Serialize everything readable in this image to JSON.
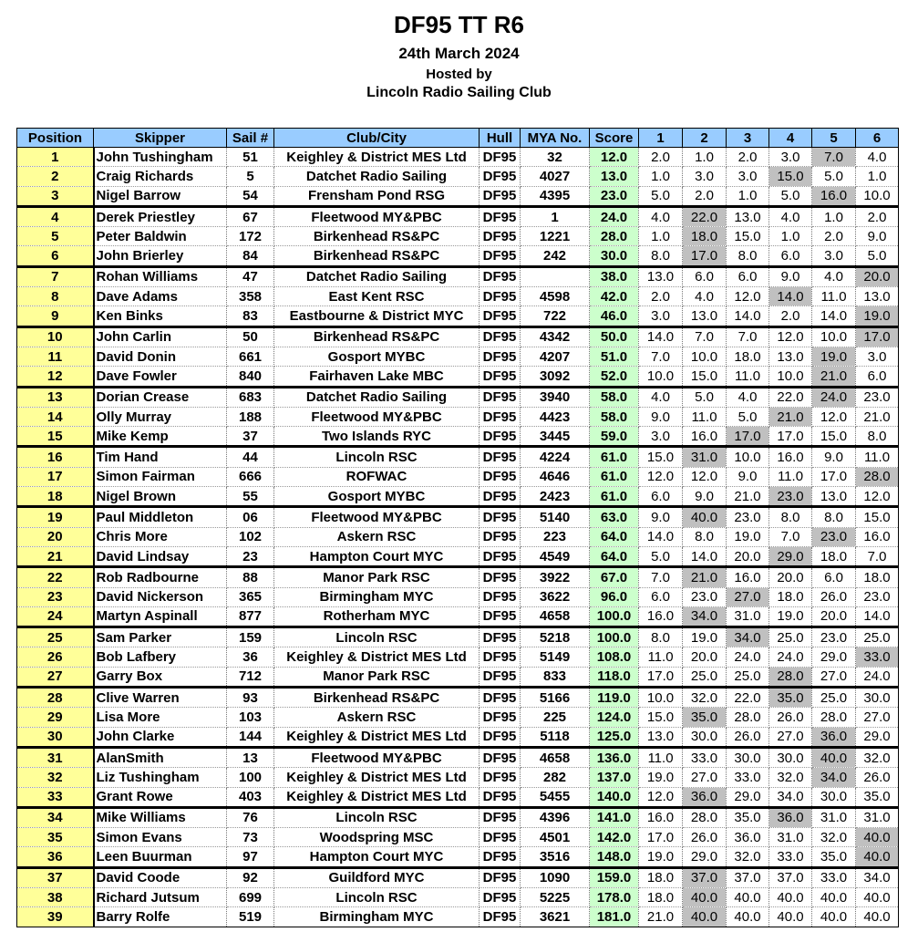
{
  "header": {
    "title": "DF95 TT R6",
    "date": "24th March 2024",
    "hosted_by": "Hosted by",
    "club": "Lincoln Radio Sailing Club"
  },
  "colors": {
    "header_bg": "#99ccff",
    "position_bg": "#ffff99",
    "score_bg": "#ccffcc",
    "discard_bg": "#c0c0c0"
  },
  "columns": [
    "Position",
    "Skipper",
    "Sail #",
    "Club/City",
    "Hull",
    "MYA No.",
    "Score",
    "1",
    "2",
    "3",
    "4",
    "5",
    "6"
  ],
  "rows": [
    {
      "pos": "1",
      "skipper": "John Tushingham",
      "sail": "51",
      "club": "Keighley & District MES Ltd",
      "hull": "DF95",
      "mya": "32",
      "score": "12.0",
      "races": [
        "2.0",
        "1.0",
        "2.0",
        "3.0",
        "7.0",
        "4.0"
      ],
      "discard": 5
    },
    {
      "pos": "2",
      "skipper": "Craig Richards",
      "sail": "5",
      "club": "Datchet Radio Sailing",
      "hull": "DF95",
      "mya": "4027",
      "score": "13.0",
      "races": [
        "1.0",
        "3.0",
        "3.0",
        "15.0",
        "5.0",
        "1.0"
      ],
      "discard": 4
    },
    {
      "pos": "3",
      "skipper": "Nigel Barrow",
      "sail": "54",
      "club": "Frensham Pond RSG",
      "hull": "DF95",
      "mya": "4395",
      "score": "23.0",
      "races": [
        "5.0",
        "2.0",
        "1.0",
        "5.0",
        "16.0",
        "10.0"
      ],
      "discard": 5
    },
    {
      "pos": "4",
      "skipper": "Derek Priestley",
      "sail": "67",
      "club": "Fleetwood MY&PBC",
      "hull": "DF95",
      "mya": "1",
      "score": "24.0",
      "races": [
        "4.0",
        "22.0",
        "13.0",
        "4.0",
        "1.0",
        "2.0"
      ],
      "discard": 2
    },
    {
      "pos": "5",
      "skipper": "Peter Baldwin",
      "sail": "172",
      "club": "Birkenhead RS&PC",
      "hull": "DF95",
      "mya": "1221",
      "score": "28.0",
      "races": [
        "1.0",
        "18.0",
        "15.0",
        "1.0",
        "2.0",
        "9.0"
      ],
      "discard": 2
    },
    {
      "pos": "6",
      "skipper": "John Brierley",
      "sail": "84",
      "club": "Birkenhead RS&PC",
      "hull": "DF95",
      "mya": "242",
      "score": "30.0",
      "races": [
        "8.0",
        "17.0",
        "8.0",
        "6.0",
        "3.0",
        "5.0"
      ],
      "discard": 2
    },
    {
      "pos": "7",
      "skipper": "Rohan Williams",
      "sail": "47",
      "club": "Datchet Radio Sailing",
      "hull": "DF95",
      "mya": "",
      "score": "38.0",
      "races": [
        "13.0",
        "6.0",
        "6.0",
        "9.0",
        "4.0",
        "20.0"
      ],
      "discard": 6
    },
    {
      "pos": "8",
      "skipper": "Dave Adams",
      "sail": "358",
      "club": "East Kent RSC",
      "hull": "DF95",
      "mya": "4598",
      "score": "42.0",
      "races": [
        "2.0",
        "4.0",
        "12.0",
        "14.0",
        "11.0",
        "13.0"
      ],
      "discard": 4
    },
    {
      "pos": "9",
      "skipper": "Ken Binks",
      "sail": "83",
      "club": "Eastbourne & District MYC",
      "hull": "DF95",
      "mya": "722",
      "score": "46.0",
      "races": [
        "3.0",
        "13.0",
        "14.0",
        "2.0",
        "14.0",
        "19.0"
      ],
      "discard": 6
    },
    {
      "pos": "10",
      "skipper": "John Carlin",
      "sail": "50",
      "club": "Birkenhead RS&PC",
      "hull": "DF95",
      "mya": "4342",
      "score": "50.0",
      "races": [
        "14.0",
        "7.0",
        "7.0",
        "12.0",
        "10.0",
        "17.0"
      ],
      "discard": 6
    },
    {
      "pos": "11",
      "skipper": "David Donin",
      "sail": "661",
      "club": "Gosport MYBC",
      "hull": "DF95",
      "mya": "4207",
      "score": "51.0",
      "races": [
        "7.0",
        "10.0",
        "18.0",
        "13.0",
        "19.0",
        "3.0"
      ],
      "discard": 5
    },
    {
      "pos": "12",
      "skipper": "Dave Fowler",
      "sail": "840",
      "club": "Fairhaven Lake MBC",
      "hull": "DF95",
      "mya": "3092",
      "score": "52.0",
      "races": [
        "10.0",
        "15.0",
        "11.0",
        "10.0",
        "21.0",
        "6.0"
      ],
      "discard": 5
    },
    {
      "pos": "13",
      "skipper": "Dorian Crease",
      "sail": "683",
      "club": "Datchet Radio Sailing",
      "hull": "DF95",
      "mya": "3940",
      "score": "58.0",
      "races": [
        "4.0",
        "5.0",
        "4.0",
        "22.0",
        "24.0",
        "23.0"
      ],
      "discard": 5
    },
    {
      "pos": "14",
      "skipper": "Olly Murray",
      "sail": "188",
      "club": "Fleetwood MY&PBC",
      "hull": "DF95",
      "mya": "4423",
      "score": "58.0",
      "races": [
        "9.0",
        "11.0",
        "5.0",
        "21.0",
        "12.0",
        "21.0"
      ],
      "discard": 4
    },
    {
      "pos": "15",
      "skipper": "Mike Kemp",
      "sail": "37",
      "club": "Two Islands RYC",
      "hull": "DF95",
      "mya": "3445",
      "score": "59.0",
      "races": [
        "3.0",
        "16.0",
        "17.0",
        "17.0",
        "15.0",
        "8.0"
      ],
      "discard": 3
    },
    {
      "pos": "16",
      "skipper": "Tim Hand",
      "sail": "44",
      "club": "Lincoln RSC",
      "hull": "DF95",
      "mya": "4224",
      "score": "61.0",
      "races": [
        "15.0",
        "31.0",
        "10.0",
        "16.0",
        "9.0",
        "11.0"
      ],
      "discard": 2
    },
    {
      "pos": "17",
      "skipper": "Simon Fairman",
      "sail": "666",
      "club": "ROFWAC",
      "hull": "DF95",
      "mya": "4646",
      "score": "61.0",
      "races": [
        "12.0",
        "12.0",
        "9.0",
        "11.0",
        "17.0",
        "28.0"
      ],
      "discard": 6
    },
    {
      "pos": "18",
      "skipper": "Nigel Brown",
      "sail": "55",
      "club": "Gosport MYBC",
      "hull": "DF95",
      "mya": "2423",
      "score": "61.0",
      "races": [
        "6.0",
        "9.0",
        "21.0",
        "23.0",
        "13.0",
        "12.0"
      ],
      "discard": 4
    },
    {
      "pos": "19",
      "skipper": "Paul Middleton",
      "sail": "06",
      "club": "Fleetwood MY&PBC",
      "hull": "DF95",
      "mya": "5140",
      "score": "63.0",
      "races": [
        "9.0",
        "40.0",
        "23.0",
        "8.0",
        "8.0",
        "15.0"
      ],
      "discard": 2
    },
    {
      "pos": "20",
      "skipper": "Chris More",
      "sail": "102",
      "club": "Askern RSC",
      "hull": "DF95",
      "mya": "223",
      "score": "64.0",
      "races": [
        "14.0",
        "8.0",
        "19.0",
        "7.0",
        "23.0",
        "16.0"
      ],
      "discard": 5
    },
    {
      "pos": "21",
      "skipper": "David Lindsay",
      "sail": "23",
      "club": "Hampton Court MYC",
      "hull": "DF95",
      "mya": "4549",
      "score": "64.0",
      "races": [
        "5.0",
        "14.0",
        "20.0",
        "29.0",
        "18.0",
        "7.0"
      ],
      "discard": 4
    },
    {
      "pos": "22",
      "skipper": "Rob Radbourne",
      "sail": "88",
      "club": "Manor Park RSC",
      "hull": "DF95",
      "mya": "3922",
      "score": "67.0",
      "races": [
        "7.0",
        "21.0",
        "16.0",
        "20.0",
        "6.0",
        "18.0"
      ],
      "discard": 2
    },
    {
      "pos": "23",
      "skipper": "David Nickerson",
      "sail": "365",
      "club": "Birmingham MYC",
      "hull": "DF95",
      "mya": "3622",
      "score": "96.0",
      "races": [
        "6.0",
        "23.0",
        "27.0",
        "18.0",
        "26.0",
        "23.0"
      ],
      "discard": 3
    },
    {
      "pos": "24",
      "skipper": "Martyn Aspinall",
      "sail": "877",
      "club": "Rotherham MYC",
      "hull": "DF95",
      "mya": "4658",
      "score": "100.0",
      "races": [
        "16.0",
        "34.0",
        "31.0",
        "19.0",
        "20.0",
        "14.0"
      ],
      "discard": 2
    },
    {
      "pos": "25",
      "skipper": "Sam Parker",
      "sail": "159",
      "club": "Lincoln RSC",
      "hull": "DF95",
      "mya": "5218",
      "score": "100.0",
      "races": [
        "8.0",
        "19.0",
        "34.0",
        "25.0",
        "23.0",
        "25.0"
      ],
      "discard": 3
    },
    {
      "pos": "26",
      "skipper": "Bob Lafbery",
      "sail": "36",
      "club": "Keighley & District MES Ltd",
      "hull": "DF95",
      "mya": "5149",
      "score": "108.0",
      "races": [
        "11.0",
        "20.0",
        "24.0",
        "24.0",
        "29.0",
        "33.0"
      ],
      "discard": 6
    },
    {
      "pos": "27",
      "skipper": "Garry Box",
      "sail": "712",
      "club": "Manor Park RSC",
      "hull": "DF95",
      "mya": "833",
      "score": "118.0",
      "races": [
        "17.0",
        "25.0",
        "25.0",
        "28.0",
        "27.0",
        "24.0"
      ],
      "discard": 4
    },
    {
      "pos": "28",
      "skipper": "Clive Warren",
      "sail": "93",
      "club": "Birkenhead RS&PC",
      "hull": "DF95",
      "mya": "5166",
      "score": "119.0",
      "races": [
        "10.0",
        "32.0",
        "22.0",
        "35.0",
        "25.0",
        "30.0"
      ],
      "discard": 4
    },
    {
      "pos": "29",
      "skipper": "Lisa More",
      "sail": "103",
      "club": "Askern RSC",
      "hull": "DF95",
      "mya": "225",
      "score": "124.0",
      "races": [
        "15.0",
        "35.0",
        "28.0",
        "26.0",
        "28.0",
        "27.0"
      ],
      "discard": 2
    },
    {
      "pos": "30",
      "skipper": "John Clarke",
      "sail": "144",
      "club": "Keighley & District MES Ltd",
      "hull": "DF95",
      "mya": "5118",
      "score": "125.0",
      "races": [
        "13.0",
        "30.0",
        "26.0",
        "27.0",
        "36.0",
        "29.0"
      ],
      "discard": 5
    },
    {
      "pos": "31",
      "skipper": "AlanSmith",
      "sail": "13",
      "club": "Fleetwood MY&PBC",
      "hull": "DF95",
      "mya": "4658",
      "score": "136.0",
      "races": [
        "11.0",
        "33.0",
        "30.0",
        "30.0",
        "40.0",
        "32.0"
      ],
      "discard": 5
    },
    {
      "pos": "32",
      "skipper": "Liz Tushingham",
      "sail": "100",
      "club": "Keighley & District MES Ltd",
      "hull": "DF95",
      "mya": "282",
      "score": "137.0",
      "races": [
        "19.0",
        "27.0",
        "33.0",
        "32.0",
        "34.0",
        "26.0"
      ],
      "discard": 5
    },
    {
      "pos": "33",
      "skipper": "Grant Rowe",
      "sail": "403",
      "club": "Keighley & District MES Ltd",
      "hull": "DF95",
      "mya": "5455",
      "score": "140.0",
      "races": [
        "12.0",
        "36.0",
        "29.0",
        "34.0",
        "30.0",
        "35.0"
      ],
      "discard": 2
    },
    {
      "pos": "34",
      "skipper": "Mike Williams",
      "sail": "76",
      "club": "Lincoln RSC",
      "hull": "DF95",
      "mya": "4396",
      "score": "141.0",
      "races": [
        "16.0",
        "28.0",
        "35.0",
        "36.0",
        "31.0",
        "31.0"
      ],
      "discard": 4
    },
    {
      "pos": "35",
      "skipper": "Simon Evans",
      "sail": "73",
      "club": "Woodspring MSC",
      "hull": "DF95",
      "mya": "4501",
      "score": "142.0",
      "races": [
        "17.0",
        "26.0",
        "36.0",
        "31.0",
        "32.0",
        "40.0"
      ],
      "discard": 6
    },
    {
      "pos": "36",
      "skipper": "Leen Buurman",
      "sail": "97",
      "club": "Hampton Court MYC",
      "hull": "DF95",
      "mya": "3516",
      "score": "148.0",
      "races": [
        "19.0",
        "29.0",
        "32.0",
        "33.0",
        "35.0",
        "40.0"
      ],
      "discard": 6
    },
    {
      "pos": "37",
      "skipper": "David Coode",
      "sail": "92",
      "club": "Guildford MYC",
      "hull": "DF95",
      "mya": "1090",
      "score": "159.0",
      "races": [
        "18.0",
        "37.0",
        "37.0",
        "37.0",
        "33.0",
        "34.0"
      ],
      "discard": 2
    },
    {
      "pos": "38",
      "skipper": "Richard Jutsum",
      "sail": "699",
      "club": "Lincoln RSC",
      "hull": "DF95",
      "mya": "5225",
      "score": "178.0",
      "races": [
        "18.0",
        "40.0",
        "40.0",
        "40.0",
        "40.0",
        "40.0"
      ],
      "discard": 2
    },
    {
      "pos": "39",
      "skipper": "Barry Rolfe",
      "sail": "519",
      "club": "Birmingham MYC",
      "hull": "DF95",
      "mya": "3621",
      "score": "181.0",
      "races": [
        "21.0",
        "40.0",
        "40.0",
        "40.0",
        "40.0",
        "40.0"
      ],
      "discard": 2
    }
  ]
}
